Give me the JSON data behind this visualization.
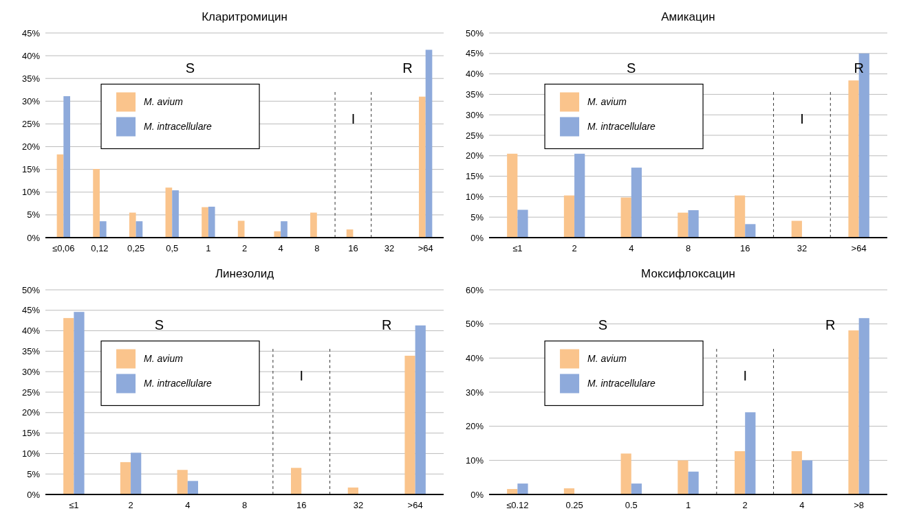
{
  "chart_data": [
    {
      "type": "bar",
      "title": "Кларитромицин",
      "categories": [
        "≤0,06",
        "0,12",
        "0,25",
        "0,5",
        "1",
        "2",
        "4",
        "8",
        "16",
        "32",
        ">64"
      ],
      "ylim": [
        0,
        45
      ],
      "yticks": [
        {
          "value": 0,
          "label": "0%"
        },
        {
          "value": 5,
          "label": "5%"
        },
        {
          "value": 10,
          "label": "10%"
        },
        {
          "value": 15,
          "label": "15%"
        },
        {
          "value": 20,
          "label": "20%"
        },
        {
          "value": 25,
          "label": "25%"
        },
        {
          "value": 30,
          "label": "30%"
        },
        {
          "value": 35,
          "label": "35%"
        },
        {
          "value": 40,
          "label": "40%"
        },
        {
          "value": 45,
          "label": "45%"
        }
      ],
      "grid": "y",
      "legend": "top left",
      "series": [
        {
          "name": "M. avium",
          "color": "#fac48c",
          "values": [
            18.3,
            15.1,
            5.5,
            11.0,
            6.7,
            3.7,
            1.4,
            5.5,
            1.8,
            0,
            31.0
          ]
        },
        {
          "name": "M. intracellulare",
          "color": "#8eaadb",
          "values": [
            31.1,
            3.6,
            3.6,
            10.4,
            6.8,
            0,
            3.6,
            0,
            0,
            0,
            41.3
          ]
        }
      ],
      "annotations": [
        "S",
        "I",
        "R"
      ]
    },
    {
      "type": "bar",
      "title": "Амикацин",
      "categories": [
        "≤1",
        "2",
        "4",
        "8",
        "16",
        "32",
        ">64"
      ],
      "ylim": [
        0,
        50
      ],
      "yticks": [
        {
          "value": 0,
          "label": "0%"
        },
        {
          "value": 5,
          "label": "5%"
        },
        {
          "value": 10,
          "label": "10%"
        },
        {
          "value": 15,
          "label": "15%"
        },
        {
          "value": 20,
          "label": "20%"
        },
        {
          "value": 25,
          "label": "25%"
        },
        {
          "value": 30,
          "label": "30%"
        },
        {
          "value": 35,
          "label": "35%"
        },
        {
          "value": 40,
          "label": "40%"
        },
        {
          "value": 45,
          "label": "45%"
        },
        {
          "value": 50,
          "label": "50%"
        }
      ],
      "grid": "y",
      "legend": "top left",
      "series": [
        {
          "name": "M. avium",
          "color": "#fac48c",
          "values": [
            20.5,
            10.3,
            9.8,
            6.1,
            10.3,
            4.1,
            38.4
          ]
        },
        {
          "name": "M. intracellulare",
          "color": "#8eaadb",
          "values": [
            6.8,
            20.5,
            17.1,
            6.7,
            3.3,
            0,
            45.0
          ]
        }
      ],
      "annotations": [
        "S",
        "I",
        "R"
      ]
    },
    {
      "type": "bar",
      "title": "Линезолид",
      "categories": [
        "≤1",
        "2",
        "4",
        "8",
        "16",
        "32",
        ">64"
      ],
      "ylim": [
        0,
        50
      ],
      "yticks": [
        {
          "value": 0,
          "label": "0%"
        },
        {
          "value": 5,
          "label": "5%"
        },
        {
          "value": 10,
          "label": "10%"
        },
        {
          "value": 15,
          "label": "15%"
        },
        {
          "value": 20,
          "label": "20%"
        },
        {
          "value": 25,
          "label": "25%"
        },
        {
          "value": 30,
          "label": "30%"
        },
        {
          "value": 35,
          "label": "35%"
        },
        {
          "value": 40,
          "label": "40%"
        },
        {
          "value": 45,
          "label": "45%"
        },
        {
          "value": 50,
          "label": "50%"
        }
      ],
      "grid": "y",
      "legend": "top left",
      "series": [
        {
          "name": "M. avium",
          "color": "#fac48c",
          "values": [
            43.1,
            7.9,
            6.0,
            0,
            6.5,
            1.7,
            33.9
          ]
        },
        {
          "name": "M. intracellulare",
          "color": "#8eaadb",
          "values": [
            44.6,
            10.2,
            3.3,
            0,
            0,
            0,
            41.3
          ]
        }
      ],
      "annotations": [
        "S",
        "I",
        "R"
      ]
    },
    {
      "type": "bar",
      "title": "Моксифлоксацин",
      "categories": [
        "≤0.12",
        "0.25",
        "0.5",
        "1",
        "2",
        "4",
        ">8"
      ],
      "ylim": [
        0,
        60
      ],
      "yticks": [
        {
          "value": 0,
          "label": "0%"
        },
        {
          "value": 10,
          "label": "10%"
        },
        {
          "value": 20,
          "label": "20%"
        },
        {
          "value": 30,
          "label": "30%"
        },
        {
          "value": 40,
          "label": "40%"
        },
        {
          "value": 50,
          "label": "50%"
        },
        {
          "value": 60,
          "label": "60%"
        }
      ],
      "grid": "y",
      "legend": "top left",
      "series": [
        {
          "name": "M. avium",
          "color": "#fac48c",
          "values": [
            1.6,
            1.8,
            12.0,
            10.0,
            12.7,
            12.7,
            48.1
          ]
        },
        {
          "name": "M. intracellulare",
          "color": "#8eaadb",
          "values": [
            3.2,
            0,
            3.2,
            6.7,
            24.1,
            10.0,
            51.7
          ]
        }
      ],
      "annotations": [
        "S",
        "I",
        "R"
      ]
    }
  ]
}
